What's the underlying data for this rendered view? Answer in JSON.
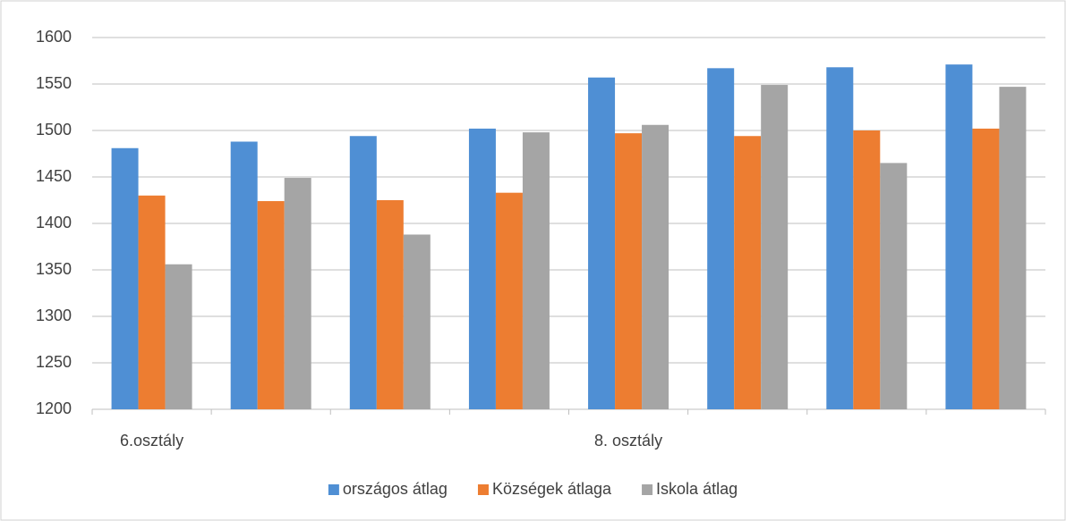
{
  "chart_data": {
    "type": "bar",
    "categories": [
      "6.osztály",
      null,
      null,
      null,
      "8. osztály",
      null,
      null,
      null
    ],
    "series": [
      {
        "name": "országos átlag",
        "color": "#4f8fd4",
        "values": [
          1481,
          1488,
          1494,
          1502,
          1557,
          1567,
          1568,
          1571
        ]
      },
      {
        "name": "Községek átlaga",
        "color": "#ed7d31",
        "values": [
          1430,
          1424,
          1425,
          1433,
          1497,
          1494,
          1500,
          1502
        ]
      },
      {
        "name": "Iskola átlag",
        "color": "#a5a5a5",
        "values": [
          1356,
          1449,
          1388,
          1498,
          1506,
          1549,
          1465,
          1547
        ]
      }
    ],
    "ylim": [
      1200,
      1600
    ],
    "yticks": [
      1200,
      1250,
      1300,
      1350,
      1400,
      1450,
      1500,
      1550,
      1600
    ],
    "grid": true,
    "legend": "bottom"
  }
}
